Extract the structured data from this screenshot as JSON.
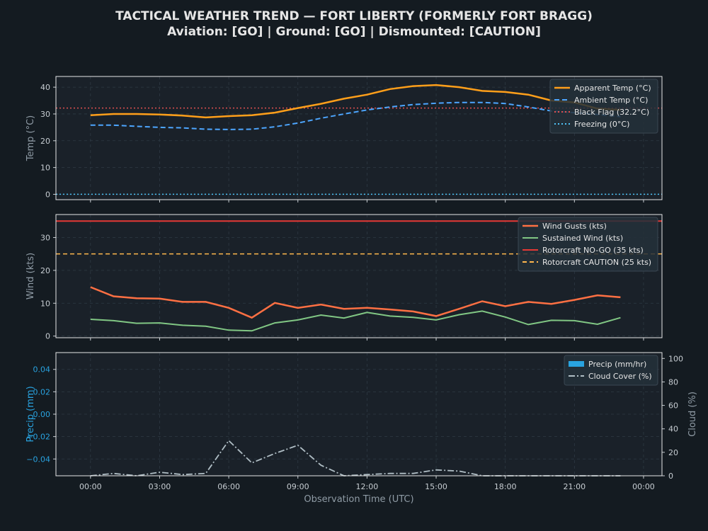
{
  "header": {
    "title": "TACTICAL WEATHER TREND — FORT LIBERTY (FORMERLY FORT BRAGG)",
    "status": "Aviation: [GO]  |  Ground: [GO]  |  Dismounted: [CAUTION]"
  },
  "colors": {
    "background": "#141b21",
    "panel": "#1a2129",
    "apparent_temp": "#ff9f1a",
    "ambient_temp": "#4da6ff",
    "black_flag": "#e05050",
    "freezing": "#4fc3f7",
    "gusts": "#ff7043",
    "sustained": "#81c784",
    "nogo": "#e53935",
    "caution": "#ffb74d",
    "precip": "#29a3e0",
    "cloud": "#b0bec5"
  },
  "chart_data": [
    {
      "type": "line",
      "panel": "temperature",
      "ylabel": "Temp (°C)",
      "ylim": [
        -2,
        44
      ],
      "yticks": [
        0,
        10,
        20,
        30,
        40
      ],
      "x": [
        0,
        1,
        2,
        3,
        4,
        5,
        6,
        7,
        8,
        9,
        10,
        11,
        12,
        13,
        14,
        15,
        16,
        17,
        18,
        19,
        20,
        21,
        22,
        23
      ],
      "series": [
        {
          "name": "Apparent Temp (°C)",
          "values": [
            29.5,
            30.0,
            30.0,
            29.8,
            29.4,
            28.7,
            29.2,
            29.5,
            30.5,
            32.2,
            33.8,
            35.7,
            37.2,
            39.3,
            40.4,
            40.8,
            40.0,
            38.6,
            38.2,
            37.2,
            35.0,
            34.3,
            32.0,
            31.5
          ]
        },
        {
          "name": "Ambient Temp (°C)",
          "values": [
            25.8,
            25.8,
            25.4,
            25.0,
            24.8,
            24.3,
            24.2,
            24.3,
            25.2,
            26.6,
            28.4,
            30.0,
            31.5,
            32.6,
            33.5,
            34.0,
            34.3,
            34.3,
            33.9,
            32.6,
            31.1,
            30.5,
            29.8,
            29.0
          ]
        }
      ],
      "reference_lines": [
        {
          "name": "Black Flag (32.2°C)",
          "value": 32.2
        },
        {
          "name": "Freezing (0°C)",
          "value": 0
        }
      ],
      "legend": "top-right",
      "grid": true
    },
    {
      "type": "line",
      "panel": "wind",
      "ylabel": "Wind (kts)",
      "ylim": [
        -0.5,
        37
      ],
      "yticks": [
        0,
        10,
        20,
        30
      ],
      "x": [
        0,
        1,
        2,
        3,
        4,
        5,
        6,
        7,
        8,
        9,
        10,
        11,
        12,
        13,
        14,
        15,
        16,
        17,
        18,
        19,
        20,
        21,
        22,
        23
      ],
      "series": [
        {
          "name": "Wind Gusts (kts)",
          "values": [
            14.9,
            12.1,
            11.5,
            11.4,
            10.4,
            10.4,
            8.6,
            5.6,
            10.1,
            8.6,
            9.6,
            8.3,
            8.6,
            8.1,
            7.5,
            6.1,
            8.3,
            10.6,
            9.1,
            10.4,
            9.8,
            11.0,
            12.4,
            11.8
          ]
        },
        {
          "name": "Sustained Wind (kts)",
          "values": [
            5.1,
            4.7,
            3.9,
            4.0,
            3.3,
            3.0,
            1.8,
            1.6,
            4.0,
            4.9,
            6.4,
            5.5,
            7.2,
            6.1,
            5.7,
            4.9,
            6.5,
            7.6,
            5.8,
            3.5,
            4.8,
            4.7,
            3.6,
            5.6
          ]
        }
      ],
      "reference_lines": [
        {
          "name": "Rotorcraft NO-GO (35 kts)",
          "value": 35
        },
        {
          "name": "Rotorcraft CAUTION (25 kts)",
          "value": 25
        }
      ],
      "legend": "top-right",
      "grid": true
    },
    {
      "type": "bar",
      "panel": "precip-cloud",
      "ylabel": "Precip (mm)",
      "ylim": [
        -0.055,
        0.055
      ],
      "yticks": [
        -0.04,
        -0.02,
        0.0,
        0.02,
        0.04
      ],
      "y2label": "Cloud (%)",
      "y2lim": [
        0,
        105
      ],
      "y2ticks": [
        0,
        20,
        40,
        60,
        80,
        100
      ],
      "xlabel": "Observation Time (UTC)",
      "xlim": [
        -1.5,
        24.8
      ],
      "xticks": [
        "00:00",
        "03:00",
        "06:00",
        "09:00",
        "12:00",
        "15:00",
        "18:00",
        "21:00",
        "00:00"
      ],
      "xtick_values": [
        0,
        3,
        6,
        9,
        12,
        15,
        18,
        21,
        24
      ],
      "x": [
        0,
        1,
        2,
        3,
        4,
        5,
        6,
        7,
        8,
        9,
        10,
        11,
        12,
        13,
        14,
        15,
        16,
        17,
        18,
        19,
        20,
        21,
        22,
        23
      ],
      "series": [
        {
          "name": "Precip (mm/hr)",
          "values": [
            0,
            0,
            0,
            0,
            0,
            0,
            0,
            0,
            0,
            0,
            0,
            0,
            0,
            0,
            0,
            0,
            0,
            0,
            0,
            0,
            0,
            0,
            0,
            0
          ]
        },
        {
          "name": "Cloud Cover (%)",
          "axis": "right",
          "values": [
            0,
            2,
            0,
            3,
            1,
            2,
            30,
            11,
            19,
            26,
            9,
            0,
            1,
            2,
            2,
            5,
            4,
            0,
            0,
            0,
            0,
            0,
            0,
            0
          ]
        }
      ],
      "legend": "top-right",
      "grid": true
    }
  ]
}
